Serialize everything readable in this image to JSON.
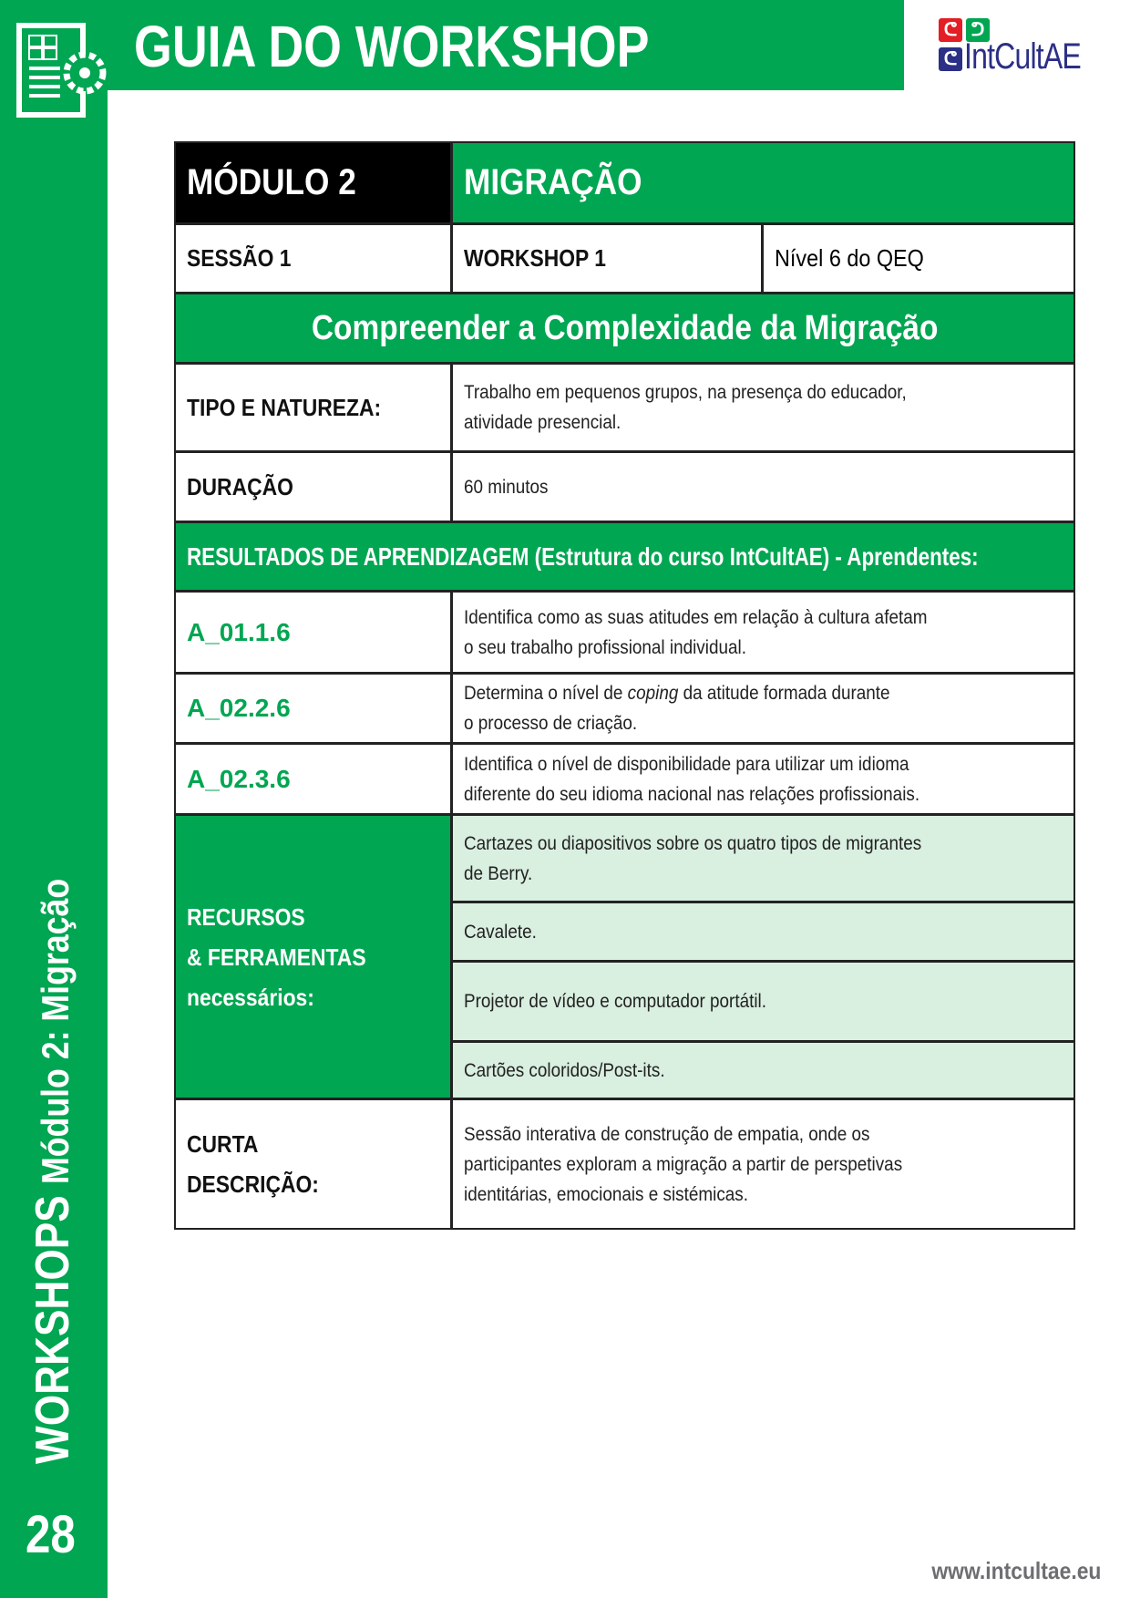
{
  "header": {
    "title": "GUIA DO WORKSHOP",
    "logo_text": "IntCultAE"
  },
  "sidebar": {
    "vertical_title_bold": "WORKSHOPS",
    "vertical_title_rest": "Módulo 2: Migração",
    "page_number": "28"
  },
  "colors": {
    "green": "#00a651",
    "light_green": "#d9efe0",
    "black": "#000000"
  },
  "table": {
    "module_label": "MÓDULO 2",
    "module_title": "MIGRAÇÃO",
    "session": "SESSÃO 1",
    "workshop": "WORKSHOP 1",
    "level": "Nível 6 do QEQ",
    "workshop_title": "Compreender a Complexidade da Migração",
    "type_label": "TIPO E NATUREZA:",
    "type_value_1": "Trabalho em pequenos grupos, na presença do educador,",
    "type_value_2": "atividade presencial.",
    "duration_label": "DURAÇÃO",
    "duration_value": "60 minutos",
    "outcomes_header": "RESULTADOS DE APRENDIZAGEM (Estrutura do curso IntCultAE) - Aprendentes:",
    "outcomes": [
      {
        "code": "A_01.1.6",
        "line1": "Identifica como as suas atitudes em relação à cultura afetam",
        "line2": "o seu trabalho profissional individual."
      },
      {
        "code": "A_02.2.6",
        "line1_pre": "Determina o nível de ",
        "line1_em": "coping",
        "line1_post": " da atitude formada durante",
        "line2": "o processo de criação."
      },
      {
        "code": "A_02.3.6",
        "line1": "Identifica o nível de disponibilidade para utilizar um idioma",
        "line2": "diferente do seu idioma nacional nas relações profissionais."
      }
    ],
    "resources_label_1": "RECURSOS",
    "resources_label_2": "& FERRAMENTAS",
    "resources_label_3": "necessários:",
    "resources": [
      {
        "line1": "Cartazes ou diapositivos sobre os quatro tipos de migrantes",
        "line2": "de Berry."
      },
      {
        "line1": "Cavalete."
      },
      {
        "line1": "Projetor de vídeo e computador portátil."
      },
      {
        "line1": "Cartões coloridos/Post-its."
      }
    ],
    "desc_label_1": "CURTA",
    "desc_label_2": "DESCRIÇÃO:",
    "desc_1": "Sessão interativa de construção de empatia, onde os",
    "desc_2": "participantes exploram a migração a partir de perspetivas",
    "desc_3": "identitárias, emocionais e sistémicas."
  },
  "footer": {
    "url": "www.intcultae.eu"
  }
}
